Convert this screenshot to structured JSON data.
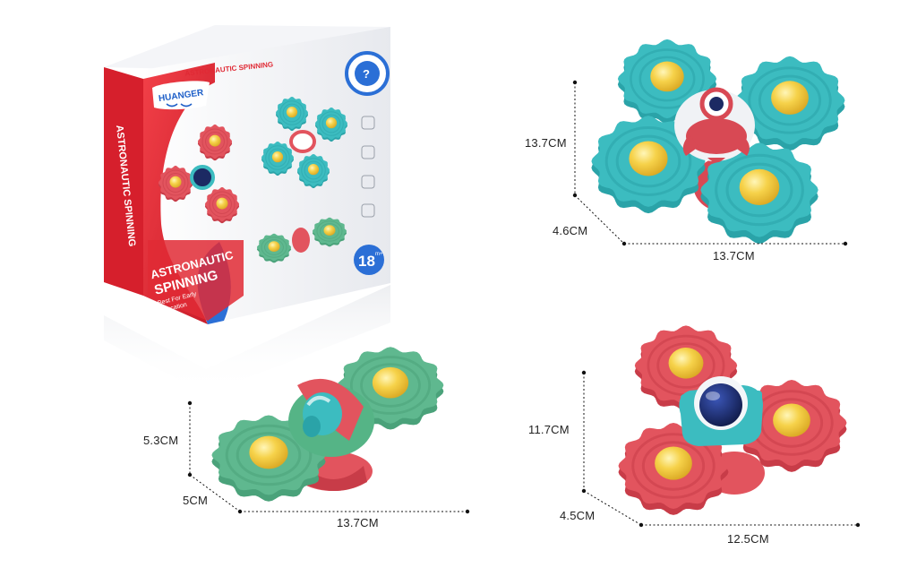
{
  "colors": {
    "teal": "#3cbcc0",
    "teal_dark": "#2aa3a8",
    "coral": "#e2545e",
    "coral_dark": "#c83c48",
    "mint": "#5fb88f",
    "mint_dark": "#4aa27a",
    "yellow": "#f2c534",
    "box_red": "#e02a35",
    "box_blue": "#2b6fd6",
    "navy": "#1c2a63"
  },
  "box": {
    "brand": "HUANGER",
    "top_title": "ASTRONAUTIC SPINNING",
    "side_title": "ASTRONAUTIC SPINNING",
    "front_title_line1": "ASTRONAUTIC",
    "front_title_line2": "SPINNING",
    "front_sub_line1": "Best For Early",
    "front_sub_line2": "Education",
    "age": "18",
    "age_unit": "m+"
  },
  "products": [
    {
      "name": "teal-spinner",
      "height_label": "13.7CM",
      "depth_label": "4.6CM",
      "width_label": "13.7CM"
    },
    {
      "name": "mint-spinner",
      "height_label": "5.3CM",
      "depth_label": "5CM",
      "width_label": "13.7CM"
    },
    {
      "name": "coral-spinner",
      "height_label": "11.7CM",
      "depth_label": "4.5CM",
      "width_label": "12.5CM"
    }
  ]
}
